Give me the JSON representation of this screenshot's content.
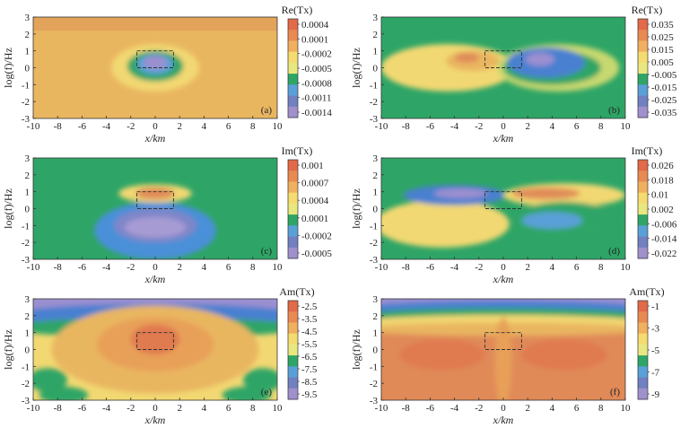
{
  "figure": {
    "description_label": "Six contour panels of Tx response versus x and frequency"
  },
  "chart_data": [
    {
      "type": "heatmap",
      "panel_label": "(a)",
      "colorbar_title": "Re(Tx)",
      "colorbar_ticks": [
        "0.0004",
        "0.0001",
        "-0.0002",
        "-0.0005",
        "-0.0008",
        "-0.0011",
        "-0.0014"
      ],
      "colorbar_colors": [
        "#e26a48",
        "#e88a52",
        "#f0b060",
        "#f5dc70",
        "#e8e880",
        "#2ea566",
        "#5aa0d8",
        "#7080c0",
        "#a090cc"
      ],
      "xlabel": "x/km",
      "ylabel": "log(f)/Hz",
      "xlim": [
        -10,
        10
      ],
      "ylim": [
        -3,
        3
      ],
      "xticks": [
        "-10",
        "-8",
        "-6",
        "-4",
        "-2",
        "0",
        "2",
        "4",
        "6",
        "8",
        "10"
      ],
      "yticks": [
        "3",
        "2",
        "1",
        "0",
        "-1",
        "-2",
        "-3"
      ],
      "background": "#e9b660",
      "top_band": "#e2a05a",
      "blobs": [
        {
          "cx": 0,
          "cy": 0.0,
          "rx": 3.6,
          "ry": 1.4,
          "color": "#f2d872"
        },
        {
          "cx": 0,
          "cy": 0.1,
          "rx": 2.3,
          "ry": 0.9,
          "color": "#2ea566"
        },
        {
          "cx": 0,
          "cy": 0.2,
          "rx": 1.5,
          "ry": 0.6,
          "color": "#5aa0d8"
        },
        {
          "cx": 0,
          "cy": 0.3,
          "rx": 1.0,
          "ry": 0.4,
          "color": "#9b8fd0"
        }
      ],
      "anomaly_box": {
        "x0": -1.5,
        "x1": 1.5,
        "y0": 0,
        "y1": 1
      }
    },
    {
      "type": "heatmap",
      "panel_label": "(b)",
      "colorbar_title": "Re(Tx)",
      "colorbar_ticks": [
        "0.035",
        "0.025",
        "0.015",
        "0.005",
        "-0.005",
        "-0.015",
        "-0.025",
        "-0.035"
      ],
      "colorbar_colors": [
        "#e26a48",
        "#e88a52",
        "#f0b060",
        "#f5dc70",
        "#e8e880",
        "#2ea566",
        "#5aa0d8",
        "#7080c0",
        "#a090cc"
      ],
      "xlabel": "x/km",
      "ylabel": "log(f)/Hz",
      "xlim": [
        -10,
        10
      ],
      "ylim": [
        -3,
        3
      ],
      "xticks": [
        "-10",
        "-8",
        "-6",
        "-4",
        "-2",
        "0",
        "2",
        "4",
        "6",
        "8",
        "10"
      ],
      "yticks": [
        "3",
        "2",
        "1",
        "0",
        "-1",
        "-2",
        "-3"
      ],
      "background": "#2ea566",
      "top_band": "#2ea566",
      "blobs": [
        {
          "cx": -4.5,
          "cy": 0.0,
          "rx": 5.5,
          "ry": 1.4,
          "color": "#f2d872"
        },
        {
          "cx": -2.5,
          "cy": 0.4,
          "rx": 2.2,
          "ry": 0.6,
          "color": "#e9b660"
        },
        {
          "cx": -3.0,
          "cy": 0.6,
          "rx": 1.0,
          "ry": 0.3,
          "color": "#e08c58"
        },
        {
          "cx": 4.5,
          "cy": 0.0,
          "rx": 5.0,
          "ry": 1.4,
          "color": "#c8d870"
        },
        {
          "cx": 4.0,
          "cy": 0.0,
          "rx": 4.0,
          "ry": 1.0,
          "color": "#2ea566"
        },
        {
          "cx": 3.5,
          "cy": 0.3,
          "rx": 3.2,
          "ry": 0.9,
          "color": "#4a80d0"
        },
        {
          "cx": 3.0,
          "cy": 0.5,
          "rx": 1.2,
          "ry": 0.4,
          "color": "#9b8fd0"
        }
      ],
      "anomaly_box": {
        "x0": -1.5,
        "x1": 1.5,
        "y0": 0,
        "y1": 1
      }
    },
    {
      "type": "heatmap",
      "panel_label": "(c)",
      "colorbar_title": "Im(Tx)",
      "colorbar_ticks": [
        "0.001",
        "0.0007",
        "0.0004",
        "0.0001",
        "-0.0002",
        "-0.0005"
      ],
      "colorbar_colors": [
        "#e26a48",
        "#e88a52",
        "#f0b060",
        "#f5dc70",
        "#e8e880",
        "#2ea566",
        "#5aa0d8",
        "#7080c0",
        "#a090cc"
      ],
      "xlabel": "x/km",
      "ylabel": "log(f)/Hz",
      "xlim": [
        -10,
        10
      ],
      "ylim": [
        -3,
        3
      ],
      "xticks": [
        "-10",
        "-8",
        "-6",
        "-4",
        "-2",
        "0",
        "2",
        "4",
        "6",
        "8",
        "10"
      ],
      "yticks": [
        "3",
        "2",
        "1",
        "0",
        "-1",
        "-2",
        "-3"
      ],
      "background": "#2ea566",
      "top_band": "#2ea566",
      "blobs": [
        {
          "cx": 0,
          "cy": -1.3,
          "rx": 5.0,
          "ry": 1.7,
          "color": "#4a90d8"
        },
        {
          "cx": 0,
          "cy": -1.0,
          "rx": 3.4,
          "ry": 1.0,
          "color": "#7f86c8"
        },
        {
          "cx": 0,
          "cy": -1.1,
          "rx": 2.5,
          "ry": 0.6,
          "color": "#a79bd4"
        },
        {
          "cx": 0,
          "cy": 0.9,
          "rx": 3.0,
          "ry": 0.55,
          "color": "#f2d872"
        },
        {
          "cx": 0,
          "cy": 0.9,
          "rx": 1.6,
          "ry": 0.35,
          "color": "#e08c58"
        }
      ],
      "anomaly_box": {
        "x0": -1.5,
        "x1": 1.5,
        "y0": 0,
        "y1": 1
      }
    },
    {
      "type": "heatmap",
      "panel_label": "(d)",
      "colorbar_title": "Im(Tx)",
      "colorbar_ticks": [
        "0.026",
        "0.018",
        "0.01",
        "0.002",
        "-0.006",
        "-0.014",
        "-0.022"
      ],
      "colorbar_colors": [
        "#e26a48",
        "#e88a52",
        "#f0b060",
        "#f5dc70",
        "#e8e880",
        "#2ea566",
        "#5aa0d8",
        "#7080c0",
        "#a090cc"
      ],
      "xlabel": "x/km",
      "ylabel": "log(f)/Hz",
      "xlim": [
        -10,
        10
      ],
      "ylim": [
        -3,
        3
      ],
      "xticks": [
        "-10",
        "-8",
        "-6",
        "-4",
        "-2",
        "0",
        "2",
        "4",
        "6",
        "8",
        "10"
      ],
      "yticks": [
        "3",
        "2",
        "1",
        "0",
        "-1",
        "-2",
        "-3"
      ],
      "background": "#2ea566",
      "top_band": "#2ea566",
      "blobs": [
        {
          "cx": -5.0,
          "cy": -0.9,
          "rx": 5.5,
          "ry": 1.4,
          "color": "#f2d872"
        },
        {
          "cx": -4.0,
          "cy": 0.8,
          "rx": 4.2,
          "ry": 0.6,
          "color": "#4a80d0"
        },
        {
          "cx": -3.5,
          "cy": 0.9,
          "rx": 2.2,
          "ry": 0.3,
          "color": "#9b8fd0"
        },
        {
          "cx": 5.0,
          "cy": 0.8,
          "rx": 5.0,
          "ry": 0.7,
          "color": "#f2d872"
        },
        {
          "cx": 3.5,
          "cy": 0.9,
          "rx": 2.8,
          "ry": 0.35,
          "color": "#e08c58"
        },
        {
          "cx": 5.0,
          "cy": -0.6,
          "rx": 4.0,
          "ry": 1.0,
          "color": "#2ea566"
        },
        {
          "cx": 4.0,
          "cy": -0.7,
          "rx": 2.5,
          "ry": 0.5,
          "color": "#5aa0d8"
        }
      ],
      "anomaly_box": {
        "x0": -1.5,
        "x1": 1.5,
        "y0": 0,
        "y1": 1
      }
    },
    {
      "type": "heatmap",
      "panel_label": "(e)",
      "colorbar_title": "Am(Tx)",
      "colorbar_ticks": [
        "-2.5",
        "-3.5",
        "-4.5",
        "-5.5",
        "-6.5",
        "-7.5",
        "-8.5",
        "-9.5"
      ],
      "colorbar_colors": [
        "#e26a48",
        "#e88a52",
        "#f0b060",
        "#f5dc70",
        "#e8e880",
        "#2ea566",
        "#5aa0d8",
        "#7080c0",
        "#a090cc"
      ],
      "xlabel": "x/km",
      "ylabel": "log(f)/Hz",
      "xlim": [
        -10,
        10
      ],
      "ylim": [
        -3,
        3
      ],
      "xticks": [
        "-10",
        "-8",
        "-6",
        "-4",
        "-2",
        "0",
        "2",
        "4",
        "6",
        "8",
        "10"
      ],
      "yticks": [
        "3",
        "2",
        "1",
        "0",
        "-1",
        "-2",
        "-3"
      ],
      "background": "#f2d872",
      "top_band": "#9b8fd0",
      "blobs": [
        {
          "cx": 0,
          "cy": 2.8,
          "rx": 12,
          "ry": 0.9,
          "color": "#9b8fd0"
        },
        {
          "cx": 0,
          "cy": 2.0,
          "rx": 12,
          "ry": 0.7,
          "color": "#4a80d0"
        },
        {
          "cx": 0,
          "cy": 1.3,
          "rx": 12,
          "ry": 0.6,
          "color": "#2ea566"
        },
        {
          "cx": 0,
          "cy": 0.0,
          "rx": 8.5,
          "ry": 2.6,
          "color": "#e9b660"
        },
        {
          "cx": 0,
          "cy": 0.3,
          "rx": 4.8,
          "ry": 1.6,
          "color": "#e8a058"
        },
        {
          "cx": 0,
          "cy": 0.6,
          "rx": 2.0,
          "ry": 0.9,
          "color": "#e07a50"
        },
        {
          "cx": -8.8,
          "cy": -1.8,
          "rx": 1.6,
          "ry": 0.7,
          "color": "#2ea566"
        },
        {
          "cx": 8.8,
          "cy": -1.8,
          "rx": 1.6,
          "ry": 0.7,
          "color": "#2ea566"
        },
        {
          "cx": -7.5,
          "cy": -2.7,
          "rx": 2.0,
          "ry": 0.5,
          "color": "#2ea566"
        },
        {
          "cx": 7.5,
          "cy": -2.7,
          "rx": 2.0,
          "ry": 0.5,
          "color": "#2ea566"
        }
      ],
      "anomaly_box": {
        "x0": -1.5,
        "x1": 1.5,
        "y0": 0,
        "y1": 1
      }
    },
    {
      "type": "heatmap",
      "panel_label": "(f)",
      "colorbar_title": "Am(Tx)",
      "colorbar_ticks": [
        "-1",
        "-3",
        "-5",
        "-7",
        "-9"
      ],
      "colorbar_colors": [
        "#e26a48",
        "#e88a52",
        "#f0b060",
        "#f5dc70",
        "#e8e880",
        "#2ea566",
        "#5aa0d8",
        "#7080c0",
        "#a090cc"
      ],
      "xlabel": "x/km",
      "ylabel": "log(f)/Hz",
      "xlim": [
        -10,
        10
      ],
      "ylim": [
        -3,
        3
      ],
      "xticks": [
        "-10",
        "-8",
        "-6",
        "-4",
        "-2",
        "0",
        "2",
        "4",
        "6",
        "8",
        "10"
      ],
      "yticks": [
        "3",
        "2",
        "1",
        "0",
        "-1",
        "-2",
        "-3"
      ],
      "background": "#e08a58",
      "top_band": "#9b8fd0",
      "blobs": [
        {
          "cx": 0,
          "cy": 3.0,
          "rx": 12,
          "ry": 0.6,
          "color": "#9b8fd0"
        },
        {
          "cx": 0,
          "cy": 2.4,
          "rx": 12,
          "ry": 0.5,
          "color": "#4a80d0"
        },
        {
          "cx": 0,
          "cy": 2.0,
          "rx": 12,
          "ry": 0.45,
          "color": "#2ea566"
        },
        {
          "cx": 0,
          "cy": 1.6,
          "rx": 12,
          "ry": 0.45,
          "color": "#f2d872"
        },
        {
          "cx": 0,
          "cy": 1.2,
          "rx": 12,
          "ry": 0.4,
          "color": "#e9b660"
        },
        {
          "cx": 0,
          "cy": -0.7,
          "rx": 0.7,
          "ry": 2.6,
          "color": "#e8a058"
        },
        {
          "cx": -5,
          "cy": -0.3,
          "rx": 3.5,
          "ry": 0.9,
          "color": "#e07a50"
        },
        {
          "cx": 5,
          "cy": -0.3,
          "rx": 3.5,
          "ry": 0.9,
          "color": "#e07a50"
        }
      ],
      "anomaly_box": {
        "x0": -1.5,
        "x1": 1.5,
        "y0": 0,
        "y1": 1
      }
    }
  ]
}
